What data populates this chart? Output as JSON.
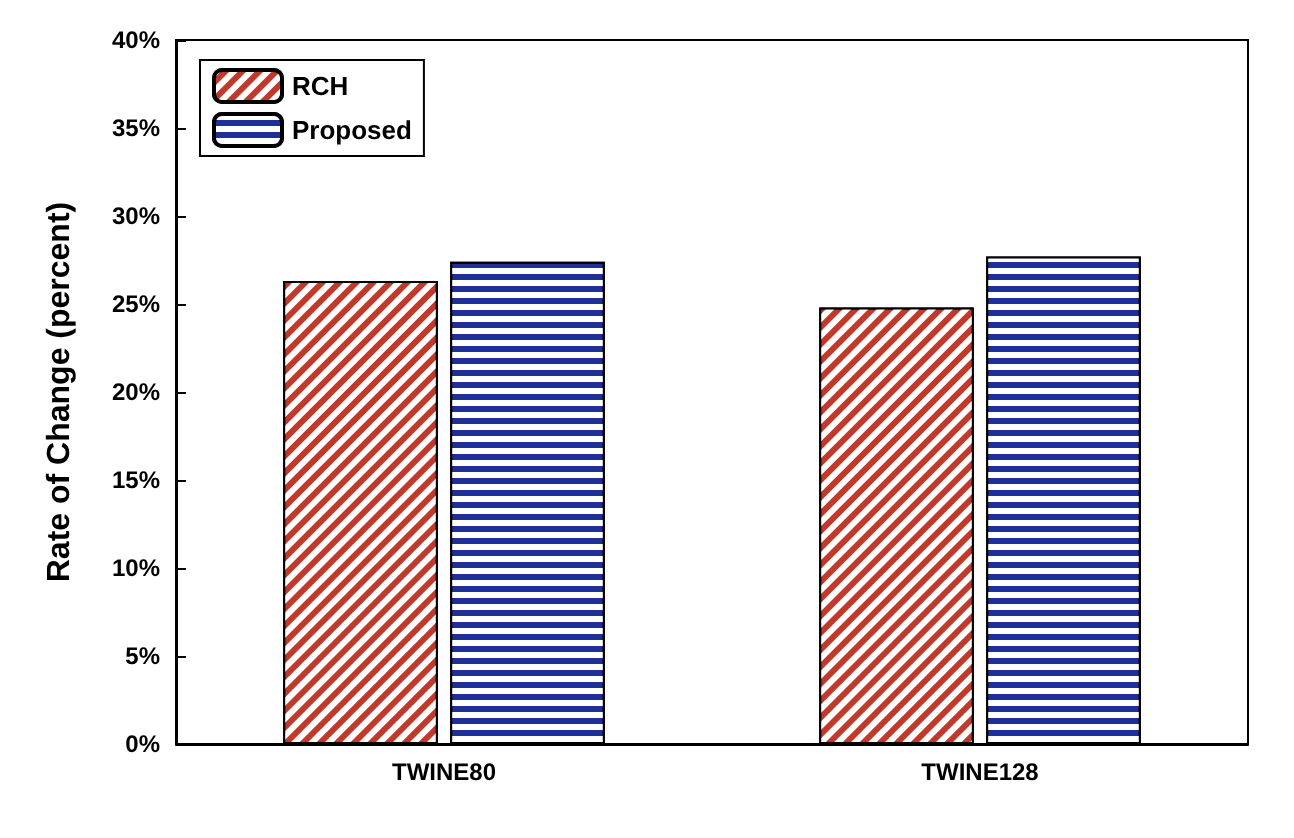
{
  "chart_data": {
    "type": "bar",
    "ylabel": "Rate of Change (percent)",
    "categories": [
      "TWINE80",
      "TWINE128"
    ],
    "series": [
      {
        "name": "RCH",
        "color": "#c0392b",
        "values": [
          26.3,
          24.8
        ]
      },
      {
        "name": "Proposed",
        "color": "#1f2f9a",
        "values": [
          27.4,
          27.7
        ]
      }
    ],
    "ylim": [
      0,
      40
    ],
    "yticks": [
      {
        "value": 0,
        "label": "0%"
      },
      {
        "value": 5,
        "label": "5%"
      },
      {
        "value": 10,
        "label": "10%"
      },
      {
        "value": 15,
        "label": "15%"
      },
      {
        "value": 20,
        "label": "20%"
      },
      {
        "value": 25,
        "label": "25%"
      },
      {
        "value": 30,
        "label": "30%"
      },
      {
        "value": 35,
        "label": "35%"
      },
      {
        "value": 40,
        "label": "40%"
      }
    ],
    "grid": false,
    "legend": "top left"
  }
}
